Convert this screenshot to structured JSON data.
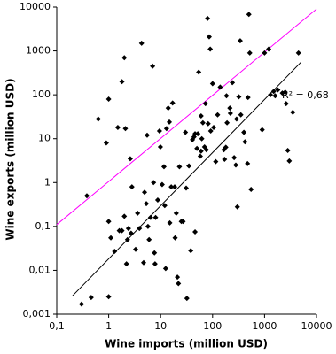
{
  "chart_data": {
    "type": "scatter",
    "xlabel": "Wine imports (million USD)",
    "ylabel": "Wine exports (million USD)",
    "log_x": true,
    "log_y": true,
    "xlim": [
      0.1,
      10000
    ],
    "ylim": [
      0.001,
      10000
    ],
    "xticks": [
      {
        "value": 0.1,
        "label": "0,1"
      },
      1,
      10,
      100,
      1000,
      10000
    ],
    "yticks": [
      {
        "value": 0.001,
        "label": "0,001"
      },
      {
        "value": 0.01,
        "label": "0,01"
      },
      {
        "value": 0.1,
        "label": "0,1"
      },
      1,
      10,
      100,
      1000,
      10000
    ],
    "color": "#000000",
    "annotation": "R² = 0,68",
    "trend_lines": [
      {
        "color": "#000000",
        "x": [
          0.2,
          5000
        ],
        "y": [
          0.0026,
          550
        ]
      },
      {
        "color": "#ff00ff",
        "x": [
          0.1,
          10000
        ],
        "y": [
          0.11,
          9000
        ]
      }
    ],
    "x": [
      0.3,
      0.46,
      0.38,
      0.63,
      0.9,
      1,
      1,
      1,
      1.1,
      1.3,
      1.5,
      1.6,
      1.8,
      1.8,
      2,
      2,
      2.2,
      2.3,
      2.4,
      2.6,
      2.7,
      2.8,
      2.1,
      3.3,
      3.6,
      3.9,
      4.3,
      4.7,
      4.9,
      5.3,
      5.5,
      5.7,
      6,
      6.4,
      7,
      7.3,
      7.6,
      7.8,
      8,
      8.8,
      9.5,
      9.9,
      10.7,
      11.6,
      12,
      12.5,
      13,
      14,
      14.7,
      15,
      16,
      17,
      18.6,
      19,
      20,
      21,
      22,
      23,
      25,
      27,
      30,
      31,
      32,
      35,
      38,
      41,
      44,
      46,
      46,
      50,
      52,
      54,
      58,
      60,
      60,
      62,
      65,
      70,
      73,
      76,
      80,
      82,
      86,
      90,
      92,
      100,
      105,
      115,
      125,
      140,
      165,
      170,
      180,
      185,
      190,
      215,
      220,
      240,
      260,
      280,
      290,
      320,
      340,
      350,
      400,
      420,
      470,
      480,
      520,
      500,
      550,
      300,
      900,
      1000,
      1200,
      1500,
      1300,
      1600,
      1800,
      2200,
      2500,
      2600,
      2800,
      3000,
      3500,
      4500
    ],
    "y": [
      0.0017,
      0.0024,
      0.5,
      28,
      8,
      80,
      0.0025,
      0.13,
      0.055,
      0.027,
      18,
      0.08,
      0.08,
      200,
      700,
      0.17,
      0.014,
      0.05,
      0.09,
      3.5,
      0.07,
      0.8,
      17,
      0.03,
      0.2,
      0.09,
      1500,
      0.015,
      0.6,
      0.33,
      12,
      0.1,
      0.05,
      0.16,
      450,
      1,
      0.025,
      0.014,
      0.16,
      0.4,
      15,
      6.5,
      0.9,
      2.3,
      0.3,
      0.011,
      17,
      50,
      24,
      0.12,
      0.8,
      65,
      0.8,
      0.055,
      0.2,
      0.007,
      0.005,
      2.3,
      0.13,
      0.13,
      14,
      0.75,
      0.0023,
      2.4,
      0.028,
      9.5,
      11,
      13,
      0.075,
      6,
      13,
      330,
      4,
      5.2,
      33,
      10,
      23,
      6.5,
      63,
      5.6,
      5500,
      22,
      2100,
      1100,
      15,
      180,
      18,
      3,
      35,
      150,
      5.6,
      3.4,
      6.4,
      95,
      23,
      50,
      38,
      190,
      3.7,
      2.5,
      28,
      90,
      1700,
      35,
      14,
      8.5,
      2.7,
      87,
      900,
      6800,
      0.7,
      0.28,
      16,
      900,
      1100,
      120,
      100,
      95,
      130,
      110,
      115,
      63,
      5.4,
      3.1,
      40,
      900
    ]
  }
}
